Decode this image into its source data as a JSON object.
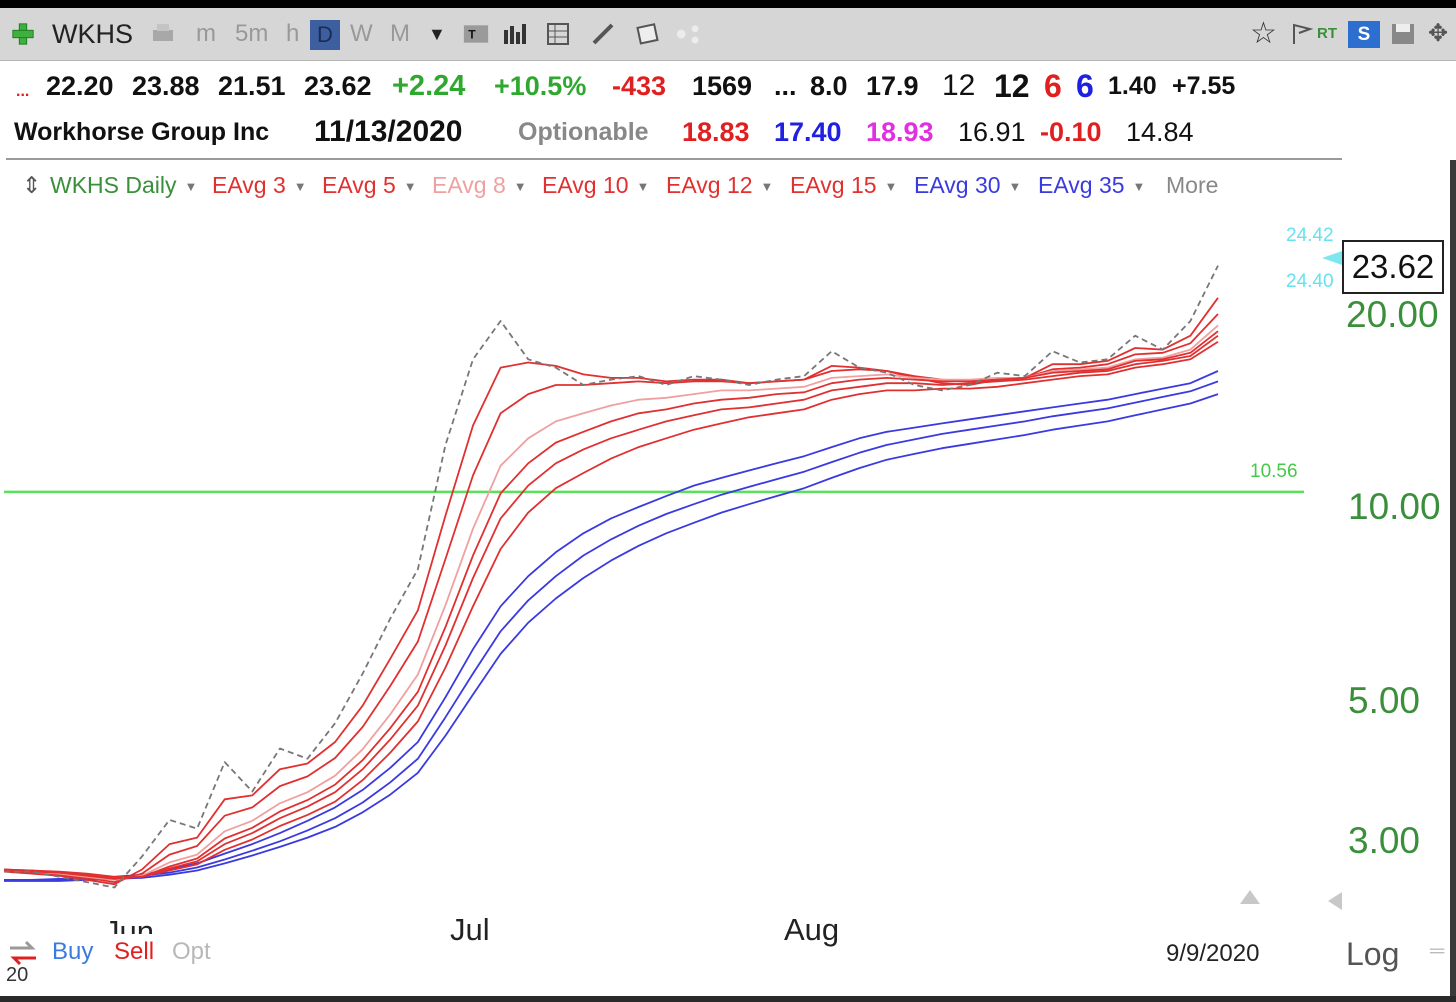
{
  "toolbar": {
    "symbol": "WKHS",
    "timeframes": [
      "m",
      "5m",
      "h",
      "D",
      "W",
      "M"
    ],
    "active_timeframe": "D",
    "rt_label": "RT",
    "s_label": "S"
  },
  "quote_row1": {
    "prefix": "...",
    "open": "22.20",
    "high": "23.88",
    "low": "21.51",
    "last": "23.62",
    "change": "+2.24",
    "change_pct": "+10.5%",
    "val1": "-433",
    "val2": "1569",
    "ellipsis": "...",
    "val3": "8.0",
    "val4": "17.9",
    "val5": "12",
    "val6": "12",
    "val7": "6",
    "val8": "6",
    "val9": "1.40",
    "val10": "+7.55"
  },
  "quote_row2": {
    "company": "Workhorse Group Inc",
    "date": "11/13/2020",
    "optionable": "Optionable",
    "v1": "18.83",
    "v2": "17.40",
    "v3": "18.93",
    "v4": "16.91",
    "v5": "-0.10",
    "v6": "14.84"
  },
  "legend": {
    "title": "WKHS Daily",
    "items": [
      {
        "label": "EAvg 3",
        "color": "#e03030"
      },
      {
        "label": "EAvg 5",
        "color": "#e03030"
      },
      {
        "label": "EAvg 8",
        "color": "#f0a0a0"
      },
      {
        "label": "EAvg 10",
        "color": "#e03030"
      },
      {
        "label": "EAvg 12",
        "color": "#e03030"
      },
      {
        "label": "EAvg 15",
        "color": "#e03030"
      },
      {
        "label": "EAvg 30",
        "color": "#3a3ae0"
      },
      {
        "label": "EAvg 35",
        "color": "#3a3ae0"
      }
    ],
    "more": "More"
  },
  "chart": {
    "price_box": "23.62",
    "ticks_cyan": [
      "24.42",
      "24.40"
    ],
    "horizontal_line_label": "10.56",
    "y_labels": [
      "20.00",
      "10.00",
      "5.00",
      "3.00"
    ],
    "months": [
      "Jun",
      "Jul",
      "Aug"
    ],
    "date_label": "9/9/2020",
    "scale_label": "Log"
  },
  "bottom": {
    "buy": "Buy",
    "sell": "Sell",
    "opt": "Opt",
    "small": "20"
  },
  "chart_data": {
    "type": "line",
    "scale": "log",
    "ylim": [
      2.5,
      26
    ],
    "y_ticks": [
      3,
      5,
      10,
      20
    ],
    "x_labels": [
      "Jun",
      "Jul",
      "Aug"
    ],
    "horizontal_line": 10.56,
    "last_price": 23.62,
    "series": [
      {
        "name": "",
        "style": "dashed",
        "color": "#777777",
        "values": [
          2.7,
          2.7,
          2.65,
          2.6,
          2.55,
          2.85,
          3.25,
          3.15,
          4.0,
          3.6,
          4.2,
          4.05,
          4.6,
          5.5,
          6.7,
          8.0,
          12.5,
          17.0,
          19.5,
          17.0,
          16.5,
          15.5,
          15.8,
          16.0,
          15.5,
          16.0,
          15.8,
          15.5,
          15.8,
          16.0,
          17.5,
          16.5,
          16.2,
          15.5,
          15.2,
          15.5,
          16.2,
          16.0,
          17.5,
          16.8,
          17.0,
          18.5,
          17.6,
          19.5,
          23.8
        ]
      },
      {
        "name": "EAvg 3",
        "color": "#e03030",
        "values": [
          2.7,
          2.68,
          2.66,
          2.62,
          2.58,
          2.72,
          2.98,
          3.05,
          3.5,
          3.55,
          3.9,
          3.98,
          4.3,
          4.9,
          5.8,
          6.9,
          9.7,
          13.4,
          16.5,
          16.8,
          16.6,
          16.1,
          15.9,
          15.9,
          15.7,
          15.8,
          15.8,
          15.6,
          15.7,
          15.8,
          16.6,
          16.5,
          16.3,
          15.9,
          15.6,
          15.5,
          15.8,
          15.9,
          16.7,
          16.7,
          16.9,
          17.7,
          17.6,
          18.5,
          21.2
        ]
      },
      {
        "name": "EAvg 5",
        "color": "#e03030",
        "values": [
          2.71,
          2.69,
          2.67,
          2.64,
          2.6,
          2.68,
          2.87,
          2.96,
          3.3,
          3.4,
          3.67,
          3.8,
          4.06,
          4.54,
          5.26,
          6.17,
          8.3,
          11.2,
          14.0,
          15.0,
          15.5,
          15.5,
          15.6,
          15.7,
          15.6,
          15.7,
          15.7,
          15.6,
          15.7,
          15.8,
          16.3,
          16.4,
          16.3,
          16.0,
          15.8,
          15.7,
          15.8,
          15.9,
          16.4,
          16.5,
          16.7,
          17.3,
          17.4,
          18.0,
          20.0
        ]
      },
      {
        "name": "EAvg 8",
        "color": "#f0a0a0",
        "values": [
          2.72,
          2.7,
          2.68,
          2.65,
          2.62,
          2.66,
          2.79,
          2.87,
          3.12,
          3.24,
          3.45,
          3.59,
          3.81,
          4.19,
          4.75,
          5.48,
          7.03,
          9.25,
          11.6,
          12.8,
          13.6,
          14.0,
          14.4,
          14.7,
          14.8,
          15.0,
          15.2,
          15.2,
          15.3,
          15.4,
          15.9,
          16.0,
          16.1,
          15.9,
          15.8,
          15.8,
          15.9,
          15.9,
          16.3,
          16.4,
          16.5,
          17.0,
          17.1,
          17.6,
          19.2
        ]
      },
      {
        "name": "EAvg 10",
        "color": "#e03030",
        "values": [
          2.72,
          2.7,
          2.69,
          2.66,
          2.63,
          2.65,
          2.75,
          2.83,
          3.04,
          3.16,
          3.35,
          3.49,
          3.69,
          4.03,
          4.52,
          5.15,
          6.5,
          8.4,
          10.5,
          11.7,
          12.6,
          13.1,
          13.6,
          14.0,
          14.2,
          14.5,
          14.7,
          14.8,
          15.0,
          15.1,
          15.6,
          15.8,
          15.9,
          15.8,
          15.7,
          15.7,
          15.8,
          15.9,
          16.2,
          16.3,
          16.4,
          16.9,
          17.0,
          17.4,
          18.8
        ]
      },
      {
        "name": "EAvg 12",
        "color": "#e03030",
        "values": [
          2.72,
          2.71,
          2.69,
          2.67,
          2.64,
          2.65,
          2.73,
          2.8,
          2.98,
          3.1,
          3.27,
          3.41,
          3.59,
          3.9,
          4.34,
          4.9,
          6.08,
          7.75,
          9.6,
          10.8,
          11.7,
          12.3,
          12.8,
          13.2,
          13.6,
          13.9,
          14.2,
          14.3,
          14.5,
          14.7,
          15.2,
          15.4,
          15.6,
          15.6,
          15.5,
          15.6,
          15.7,
          15.8,
          16.0,
          16.2,
          16.3,
          16.7,
          16.9,
          17.2,
          18.5
        ]
      },
      {
        "name": "EAvg 15",
        "color": "#e03030",
        "values": [
          2.72,
          2.71,
          2.7,
          2.68,
          2.65,
          2.65,
          2.71,
          2.77,
          2.92,
          3.03,
          3.18,
          3.31,
          3.47,
          3.75,
          4.14,
          4.63,
          5.62,
          7.0,
          8.6,
          9.8,
          10.7,
          11.3,
          11.9,
          12.4,
          12.8,
          13.2,
          13.5,
          13.8,
          14.0,
          14.2,
          14.7,
          15.0,
          15.2,
          15.2,
          15.3,
          15.3,
          15.4,
          15.6,
          15.8,
          16.0,
          16.1,
          16.5,
          16.7,
          17.0,
          18.1
        ]
      },
      {
        "name": "",
        "color": "#3a3ae0",
        "values": [
          2.62,
          2.62,
          2.63,
          2.64,
          2.65,
          2.67,
          2.72,
          2.78,
          2.88,
          2.98,
          3.1,
          3.24,
          3.4,
          3.62,
          3.92,
          4.3,
          5.05,
          6.0,
          7.0,
          7.8,
          8.5,
          9.1,
          9.6,
          10.0,
          10.4,
          10.8,
          11.1,
          11.4,
          11.7,
          12.0,
          12.4,
          12.8,
          13.1,
          13.3,
          13.5,
          13.7,
          13.9,
          14.1,
          14.3,
          14.5,
          14.7,
          15.0,
          15.3,
          15.6,
          16.3
        ]
      },
      {
        "name": "EAvg 30",
        "color": "#3a3ae0",
        "values": [
          2.62,
          2.62,
          2.62,
          2.63,
          2.64,
          2.66,
          2.69,
          2.74,
          2.82,
          2.91,
          3.01,
          3.13,
          3.27,
          3.46,
          3.72,
          4.05,
          4.7,
          5.5,
          6.4,
          7.15,
          7.8,
          8.4,
          8.9,
          9.35,
          9.75,
          10.1,
          10.45,
          10.75,
          11.05,
          11.35,
          11.75,
          12.15,
          12.5,
          12.75,
          13.0,
          13.2,
          13.4,
          13.6,
          13.85,
          14.05,
          14.25,
          14.55,
          14.85,
          15.15,
          15.7
        ]
      },
      {
        "name": "EAvg 35",
        "color": "#3a3ae0",
        "values": [
          2.61,
          2.61,
          2.61,
          2.62,
          2.63,
          2.64,
          2.67,
          2.71,
          2.78,
          2.86,
          2.95,
          3.05,
          3.17,
          3.34,
          3.56,
          3.85,
          4.4,
          5.1,
          5.9,
          6.6,
          7.2,
          7.75,
          8.25,
          8.7,
          9.1,
          9.45,
          9.8,
          10.1,
          10.4,
          10.7,
          11.1,
          11.5,
          11.85,
          12.1,
          12.35,
          12.55,
          12.75,
          12.95,
          13.2,
          13.4,
          13.6,
          13.9,
          14.2,
          14.5,
          15.0
        ]
      }
    ]
  }
}
